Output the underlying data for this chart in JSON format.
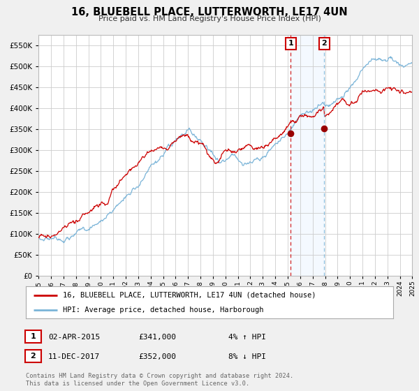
{
  "title": "16, BLUEBELL PLACE, LUTTERWORTH, LE17 4UN",
  "subtitle": "Price paid vs. HM Land Registry's House Price Index (HPI)",
  "legend_line1": "16, BLUEBELL PLACE, LUTTERWORTH, LE17 4UN (detached house)",
  "legend_line2": "HPI: Average price, detached house, Harborough",
  "transaction1_date": "02-APR-2015",
  "transaction1_price": "£341,000",
  "transaction1_hpi": "4% ↑ HPI",
  "transaction2_date": "11-DEC-2017",
  "transaction2_price": "£352,000",
  "transaction2_hpi": "8% ↓ HPI",
  "footnote1": "Contains HM Land Registry data © Crown copyright and database right 2024.",
  "footnote2": "This data is licensed under the Open Government Licence v3.0.",
  "hpi_color": "#7ab4d8",
  "price_color": "#cc0000",
  "marker_color": "#990000",
  "vline1_color": "#cc0000",
  "vline2_color": "#7ab4d8",
  "shade_color": "#ddeeff",
  "background_color": "#f0f0f0",
  "plot_bg_color": "#ffffff",
  "grid_color": "#cccccc",
  "ylim_max": 575000,
  "yticks": [
    0,
    50000,
    100000,
    150000,
    200000,
    250000,
    300000,
    350000,
    400000,
    450000,
    500000,
    550000
  ],
  "transaction1_x": 2015.25,
  "transaction1_y": 341000,
  "transaction2_x": 2017.94,
  "transaction2_y": 352000,
  "vline1_x": 2015.25,
  "vline2_x": 2017.94,
  "xmin": 1995,
  "xmax": 2025
}
